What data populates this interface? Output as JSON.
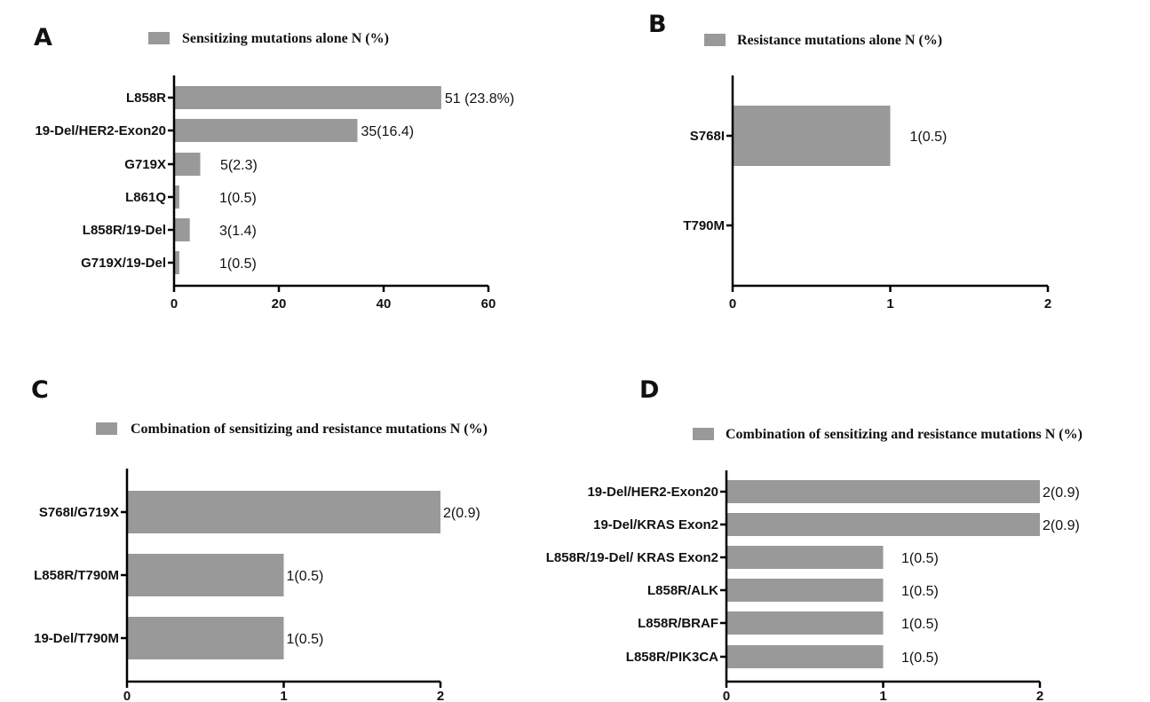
{
  "chart_data": [
    {
      "type": "bar",
      "orientation": "horizontal",
      "panel_label": "A",
      "legend": "Sensitizing mutations alone N (%)",
      "categories": [
        "L858R",
        "19-Del/HER2-Exon20",
        "G719X",
        "L861Q",
        "L858R/19-Del",
        "G719X/19-Del"
      ],
      "values": [
        51,
        35,
        5,
        1,
        3,
        1
      ],
      "data_labels": [
        "51 (23.8%)",
        "35(16.4)",
        "5(2.3)",
        "1(0.5)",
        "3(1.4)",
        "1(0.5)"
      ],
      "xlim": [
        0,
        60
      ],
      "xticks": [
        "0",
        "20",
        "40",
        "60"
      ],
      "bar_color": "#999999"
    },
    {
      "type": "bar",
      "orientation": "horizontal",
      "panel_label": "B",
      "legend": "Resistance mutations alone N (%)",
      "categories": [
        "S768I",
        "T790M"
      ],
      "values": [
        1,
        0
      ],
      "data_labels": [
        "1(0.5)",
        ""
      ],
      "xlim": [
        0,
        2
      ],
      "xticks": [
        "0",
        "1",
        "2"
      ],
      "bar_color": "#999999"
    },
    {
      "type": "bar",
      "orientation": "horizontal",
      "panel_label": "C",
      "legend": "Combination of sensitizing and resistance mutations N (%)",
      "categories": [
        "S768I/G719X",
        "L858R/T790M",
        "19-Del/T790M"
      ],
      "values": [
        2,
        1,
        1
      ],
      "data_labels": [
        "2(0.9)",
        "1(0.5)",
        "1(0.5)"
      ],
      "xlim": [
        0,
        2
      ],
      "xticks": [
        "0",
        "1",
        "2"
      ],
      "bar_color": "#999999"
    },
    {
      "type": "bar",
      "orientation": "horizontal",
      "panel_label": "D",
      "legend": "Combination of sensitizing and resistance mutations N (%)",
      "categories": [
        "19-Del/HER2-Exon20",
        "19-Del/KRAS Exon2",
        "L858R/19-Del/ KRAS Exon2",
        "L858R/ALK",
        "L858R/BRAF",
        "L858R/PIK3CA"
      ],
      "values": [
        2,
        2,
        1,
        1,
        1,
        1
      ],
      "data_labels": [
        "2(0.9)",
        "2(0.9)",
        "1(0.5)",
        "1(0.5)",
        "1(0.5)",
        "1(0.5)"
      ],
      "xlim": [
        0,
        2
      ],
      "xticks": [
        "0",
        "1",
        "2"
      ],
      "bar_color": "#999999"
    }
  ]
}
